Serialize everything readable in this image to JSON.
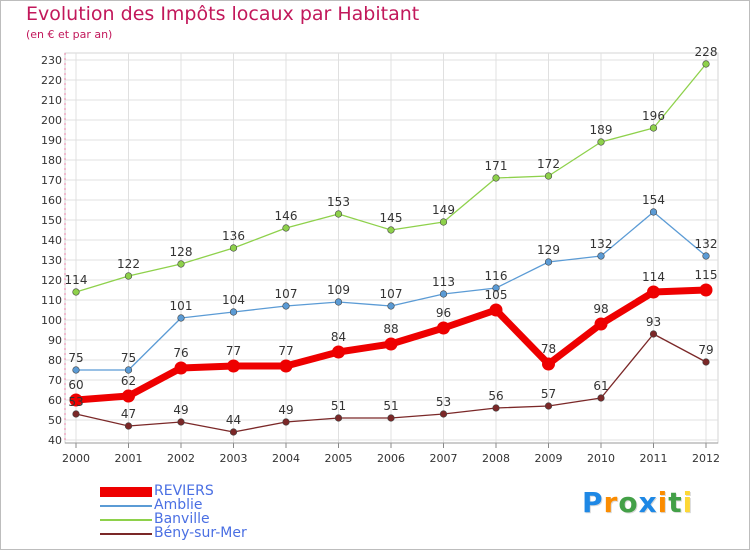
{
  "header": {
    "title": "Evolution des Impôts locaux par Habitant",
    "subtitle": "(en € et par an)"
  },
  "brand": {
    "letters": [
      "P",
      "r",
      "o",
      "x",
      "i",
      "t",
      "i"
    ],
    "colors": [
      "#1e88e5",
      "#fb8c00",
      "#43a047",
      "#1e88e5",
      "#fb8c00",
      "#43a047",
      "#fdd835"
    ]
  },
  "chart_data": {
    "type": "line",
    "title": "Evolution des Impôts locaux par Habitant",
    "subtitle": "(en € et par an)",
    "xlabel": "",
    "ylabel": "",
    "x": [
      "2000",
      "2001",
      "2002",
      "2003",
      "2004",
      "2005",
      "2006",
      "2007",
      "2008",
      "2009",
      "2010",
      "2011",
      "2012"
    ],
    "ylim": [
      40,
      230
    ],
    "yticks": [
      40,
      50,
      60,
      70,
      80,
      90,
      100,
      110,
      120,
      130,
      140,
      150,
      160,
      170,
      180,
      190,
      200,
      210,
      220,
      230
    ],
    "grid": true,
    "legend_position": "bottom-left",
    "series": [
      {
        "name": "REVIERS",
        "color": "#ee0000",
        "values": [
          60,
          62,
          76,
          77,
          77,
          84,
          88,
          96,
          105,
          78,
          98,
          114,
          115
        ]
      },
      {
        "name": "Amblie",
        "color": "#5b9bd5",
        "values": [
          75,
          75,
          101,
          104,
          107,
          109,
          107,
          113,
          116,
          129,
          132,
          154,
          132
        ]
      },
      {
        "name": "Banville",
        "color": "#8ed14b",
        "values": [
          114,
          122,
          128,
          136,
          146,
          153,
          145,
          149,
          171,
          172,
          189,
          196,
          228
        ]
      },
      {
        "name": "Bény-sur-Mer",
        "color": "#7b2828",
        "values": [
          53,
          47,
          49,
          44,
          49,
          51,
          51,
          53,
          56,
          57,
          61,
          93,
          79
        ]
      }
    ]
  }
}
